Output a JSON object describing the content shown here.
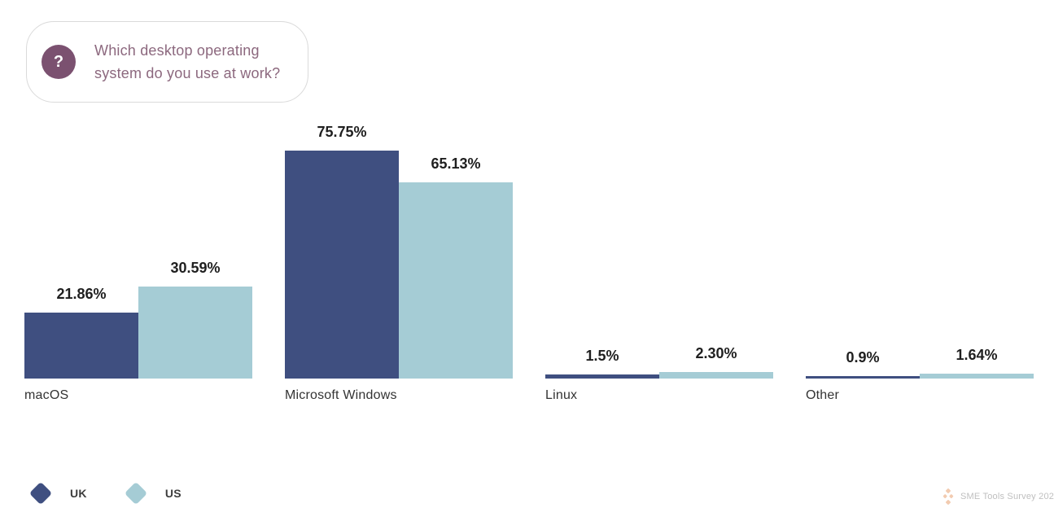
{
  "question": {
    "icon_glyph": "?",
    "text": "Which desktop operating system do you use at work?"
  },
  "chart_data": {
    "type": "bar",
    "title": "",
    "categories": [
      "macOS",
      "Microsoft Windows",
      "Linux",
      "Other"
    ],
    "series": [
      {
        "name": "UK",
        "color": "#3F4F80",
        "values": [
          21.86,
          75.75,
          1.5,
          0.9
        ],
        "value_labels": [
          "21.86%",
          "75.75%",
          "1.5%",
          "0.9%"
        ]
      },
      {
        "name": "US",
        "color": "#A5CCD5",
        "values": [
          30.59,
          65.13,
          2.3,
          1.64
        ],
        "value_labels": [
          "30.59%",
          "65.13%",
          "2.30%",
          "1.64%"
        ]
      }
    ],
    "ylim": [
      0,
      80
    ],
    "grid": false,
    "axes_shown": false,
    "value_labels_shown": true,
    "legend_position": "bottom-left"
  },
  "legend": {
    "items": [
      {
        "label": "UK",
        "color": "#3F4F80"
      },
      {
        "label": "US",
        "color": "#A5CCD5"
      }
    ]
  },
  "footer": {
    "source_text": "SME Tools Survey 202",
    "icon": "diamond-cluster-logo",
    "icon_color": "#F2CBB0"
  }
}
